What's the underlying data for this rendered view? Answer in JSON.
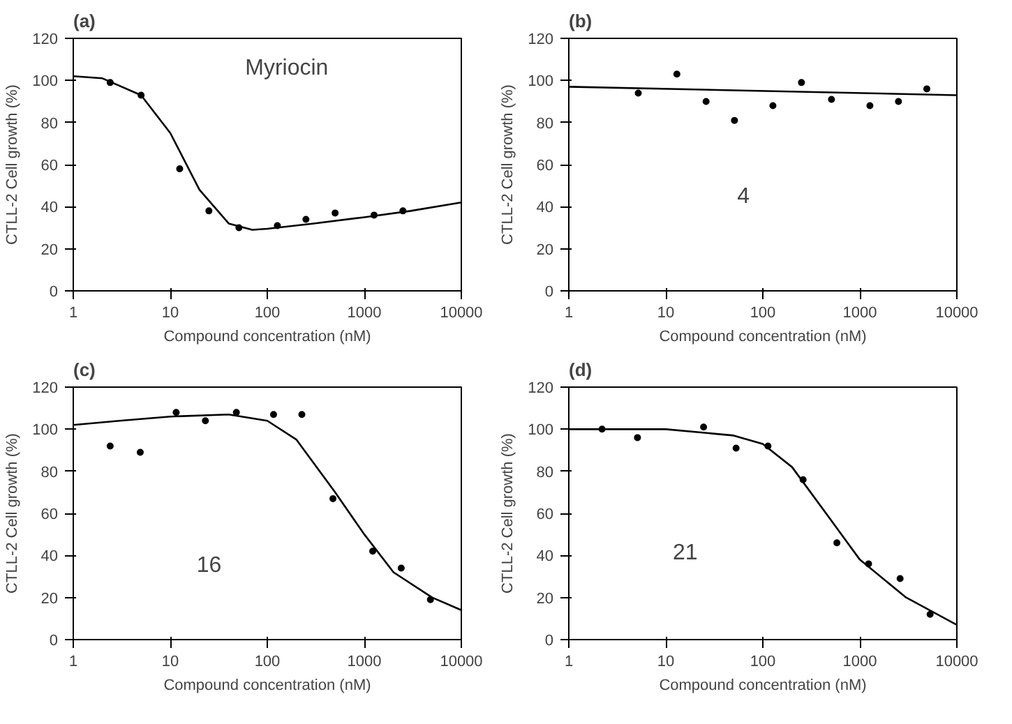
{
  "chart_data": [
    {
      "type": "scatter",
      "title": "(a)",
      "xlabel": "Compound concentration (nM)",
      "ylabel": "CTLL-2 Cell growth (%)",
      "log": "x",
      "grid": false,
      "marker": "circle",
      "xlim": [
        1,
        10000
      ],
      "ylim": [
        0,
        120
      ],
      "xticks": [
        1,
        10,
        100,
        1000,
        10000
      ],
      "yticks": [
        0,
        20,
        40,
        60,
        80,
        100,
        120
      ],
      "annotations": [
        "Myriocin"
      ],
      "series": [
        {
          "color": "#000000",
          "x": [
            2.4,
            5,
            12.5,
            25,
            51,
            127,
            250,
            500,
            1260,
            2500
          ],
          "values": [
            99,
            93,
            58,
            38,
            30,
            31,
            34,
            37,
            36,
            38
          ]
        },
        {
          "type": "line",
          "color": "#000000",
          "line_style": "solid",
          "marker": "none",
          "x": [
            1,
            2,
            5,
            10,
            20,
            40,
            70,
            100,
            300,
            1000,
            3000,
            10000
          ],
          "values": [
            102,
            101,
            93,
            75,
            48,
            32,
            29,
            29.5,
            32,
            35,
            38,
            42
          ]
        }
      ]
    },
    {
      "type": "scatter",
      "title": "(b)",
      "xlabel": "Compound concentration (nM)",
      "ylabel": "CTLL-2 Cell growth (%)",
      "log": "x",
      "grid": false,
      "marker": "circle",
      "xlim": [
        1,
        10000
      ],
      "ylim": [
        0,
        120
      ],
      "xticks": [
        1,
        10,
        100,
        1000,
        10000
      ],
      "yticks": [
        0,
        20,
        40,
        60,
        80,
        100,
        120
      ],
      "annotations": [
        "4"
      ],
      "series": [
        {
          "color": "#000000",
          "x": [
            5.2,
            13,
            26,
            51,
            127,
            250,
            510,
            1270,
            2500,
            4900
          ],
          "values": [
            94,
            103,
            90,
            81,
            88,
            99,
            91,
            88,
            90,
            96
          ]
        },
        {
          "type": "line",
          "color": "#000000",
          "line_style": "solid",
          "marker": "none",
          "x": [
            1,
            10000
          ],
          "values": [
            97,
            93
          ]
        }
      ]
    },
    {
      "type": "scatter",
      "title": "(c)",
      "xlabel": "Compound concentration (nM)",
      "ylabel": "CTLL-2 Cell growth (%)",
      "log": "x",
      "grid": false,
      "marker": "circle",
      "xlim": [
        1,
        10000
      ],
      "ylim": [
        0,
        120
      ],
      "xticks": [
        1,
        10,
        100,
        1000,
        10000
      ],
      "yticks": [
        0,
        20,
        40,
        60,
        80,
        100,
        120
      ],
      "annotations": [
        "16"
      ],
      "series": [
        {
          "color": "#000000",
          "x": [
            2.4,
            4.9,
            11.5,
            23,
            48,
            116,
            227,
            475,
            1220,
            2400,
            4800
          ],
          "values": [
            92,
            89,
            108,
            104,
            108,
            107,
            107,
            67,
            42,
            34,
            19
          ]
        },
        {
          "type": "line",
          "color": "#000000",
          "line_style": "solid",
          "marker": "none",
          "x": [
            1,
            3,
            10,
            40,
            100,
            200,
            500,
            1000,
            2000,
            5000,
            10000
          ],
          "values": [
            102,
            104,
            106,
            107,
            104,
            95,
            70,
            50,
            32,
            20,
            14
          ]
        }
      ]
    },
    {
      "type": "scatter",
      "title": "(d)",
      "xlabel": "Compound concentration (nM)",
      "ylabel": "CTLL-2 Cell growth (%)",
      "log": "x",
      "grid": false,
      "marker": "circle",
      "xlim": [
        1,
        10000
      ],
      "ylim": [
        0,
        120
      ],
      "xticks": [
        1,
        10,
        100,
        1000,
        10000
      ],
      "yticks": [
        0,
        20,
        40,
        60,
        80,
        100,
        120
      ],
      "annotations": [
        "21"
      ],
      "series": [
        {
          "color": "#000000",
          "x": [
            2.2,
            5.1,
            24.5,
            53,
            113,
            260,
            580,
            1230,
            2600,
            5300
          ],
          "values": [
            100,
            96,
            101,
            91,
            92,
            76,
            46,
            36,
            29,
            12
          ]
        },
        {
          "type": "line",
          "color": "#000000",
          "line_style": "solid",
          "marker": "none",
          "x": [
            1,
            10,
            50,
            100,
            200,
            500,
            1000,
            3000,
            10000
          ],
          "values": [
            100,
            100,
            97,
            93,
            82,
            57,
            38,
            20,
            7
          ]
        }
      ]
    }
  ]
}
